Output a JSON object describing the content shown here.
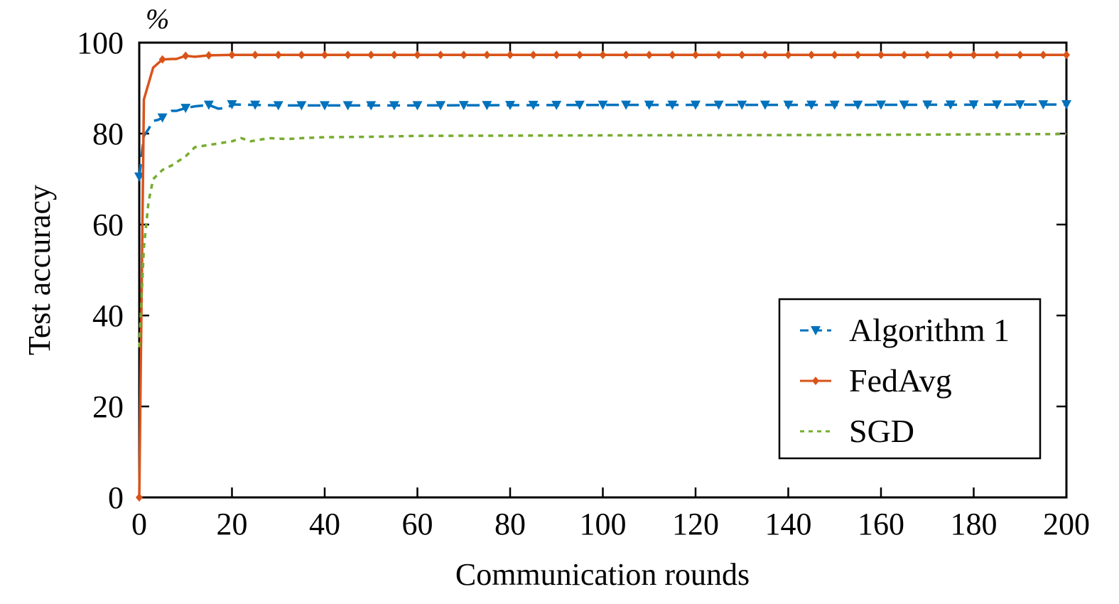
{
  "chart_data": {
    "type": "line",
    "title": "",
    "unit_label": "%",
    "xlabel": "Communication rounds",
    "ylabel": "Test accuracy",
    "xlim": [
      0,
      200
    ],
    "ylim": [
      0,
      100
    ],
    "xticks": [
      0,
      20,
      40,
      60,
      80,
      100,
      120,
      140,
      160,
      180,
      200
    ],
    "yticks": [
      0,
      20,
      40,
      60,
      80,
      100
    ],
    "grid": false,
    "legend_position": "bottom-right",
    "series": [
      {
        "name": "Algorithm 1",
        "color": "#0072BD",
        "style": "dashed",
        "marker": "triangle-down",
        "x": [
          0,
          1,
          2,
          3,
          4,
          5,
          7,
          8,
          10,
          12,
          15,
          17,
          19,
          20,
          25,
          30,
          40,
          60,
          100,
          150,
          200
        ],
        "y": [
          70.5,
          79.5,
          81,
          82.8,
          83,
          83.5,
          85,
          85,
          85.6,
          86,
          86.3,
          85.5,
          85.6,
          86.4,
          86.3,
          86.2,
          86.2,
          86.2,
          86.3,
          86.3,
          86.4
        ]
      },
      {
        "name": "FedAvg",
        "color": "#D95319",
        "style": "solid",
        "marker": "diamond",
        "x": [
          0,
          1,
          3,
          5,
          7,
          8,
          10,
          12,
          15,
          20,
          30,
          60,
          100,
          150,
          200
        ],
        "y": [
          0,
          87.5,
          94.5,
          96.3,
          96.4,
          96.4,
          97.1,
          96.9,
          97.2,
          97.3,
          97.3,
          97.3,
          97.3,
          97.3,
          97.3
        ]
      },
      {
        "name": "SGD",
        "color": "#77AC30",
        "style": "dotted",
        "marker": "none",
        "x": [
          0,
          1,
          2,
          3,
          5,
          7,
          10,
          12,
          15,
          20,
          22,
          24,
          28,
          32,
          35,
          40,
          50,
          60,
          100,
          150,
          200
        ],
        "y": [
          33,
          55,
          65,
          70,
          72,
          73,
          75,
          77,
          77.5,
          78.3,
          79,
          78.3,
          79,
          78.8,
          79,
          79.2,
          79.3,
          79.5,
          79.6,
          79.7,
          79.9
        ]
      }
    ]
  }
}
